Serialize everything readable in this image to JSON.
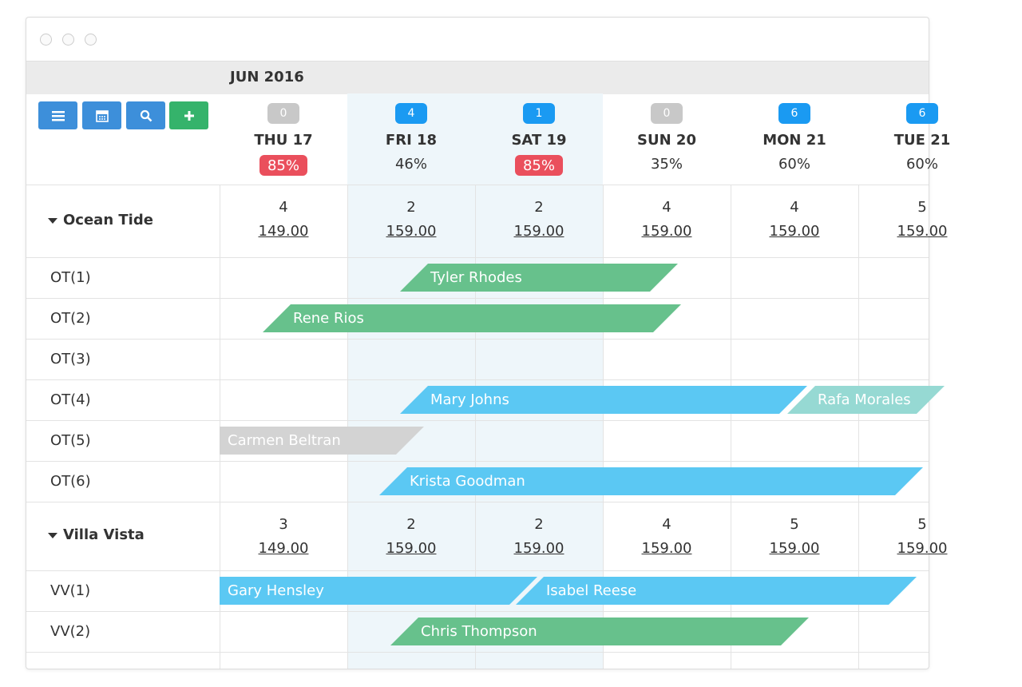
{
  "month": "JUN 2016",
  "days": [
    {
      "count": 0,
      "count_color": "#c8c8c8",
      "label": "THU 17",
      "occupancy": "85%",
      "occupancy_color": "#ea4f5c",
      "shaded": false
    },
    {
      "count": 4,
      "count_color": "#1a9af2",
      "label": "FRI 18",
      "occupancy": "46%",
      "occupancy_color": null,
      "shaded": true
    },
    {
      "count": 1,
      "count_color": "#1a9af2",
      "label": "SAT 19",
      "occupancy": "85%",
      "occupancy_color": "#ea4f5c",
      "shaded": true
    },
    {
      "count": 0,
      "count_color": "#c8c8c8",
      "label": "SUN 20",
      "occupancy": "35%",
      "occupancy_color": null,
      "shaded": false
    },
    {
      "count": 6,
      "count_color": "#1a9af2",
      "label": "MON 21",
      "occupancy": "60%",
      "occupancy_color": null,
      "shaded": false
    },
    {
      "count": 6,
      "count_color": "#1a9af2",
      "label": "TUE 21",
      "occupancy": "60%",
      "occupancy_color": null,
      "shaded": false
    }
  ],
  "groups": [
    {
      "name": "Ocean Tide",
      "availability": [
        4,
        2,
        2,
        4,
        4,
        5
      ],
      "prices": [
        "149.00",
        "159.00",
        "159.00",
        "159.00",
        "159.00",
        "159.00"
      ],
      "units": [
        {
          "name": "OT(1)",
          "bookings": [
            {
              "guest": "Tyler Rhodes",
              "color": "#67c18c"
            }
          ]
        },
        {
          "name": "OT(2)",
          "bookings": [
            {
              "guest": "Rene Rios",
              "color": "#67c18c"
            }
          ]
        },
        {
          "name": "OT(3)",
          "bookings": []
        },
        {
          "name": "OT(4)",
          "bookings": [
            {
              "guest": "Mary Johns",
              "color": "#5bc8f3"
            },
            {
              "guest": "Rafa Morales",
              "color": "#96d9d3"
            }
          ]
        },
        {
          "name": "OT(5)",
          "bookings": [
            {
              "guest": "Carmen Beltran",
              "color": "#d3d3d3"
            }
          ]
        },
        {
          "name": "OT(6)",
          "bookings": [
            {
              "guest": "Krista Goodman",
              "color": "#5bc8f3"
            }
          ]
        }
      ]
    },
    {
      "name": "Villa Vista",
      "availability": [
        3,
        2,
        2,
        4,
        5,
        5
      ],
      "prices": [
        "149.00",
        "159.00",
        "159.00",
        "159.00",
        "159.00",
        "159.00"
      ],
      "units": [
        {
          "name": "VV(1)",
          "bookings": [
            {
              "guest": "Gary Hensley",
              "color": "#5bc8f3"
            },
            {
              "guest": "Isabel Reese",
              "color": "#5bc8f3"
            }
          ]
        },
        {
          "name": "VV(2)",
          "bookings": [
            {
              "guest": "Chris Thompson",
              "color": "#67c18c"
            }
          ]
        }
      ]
    }
  ]
}
